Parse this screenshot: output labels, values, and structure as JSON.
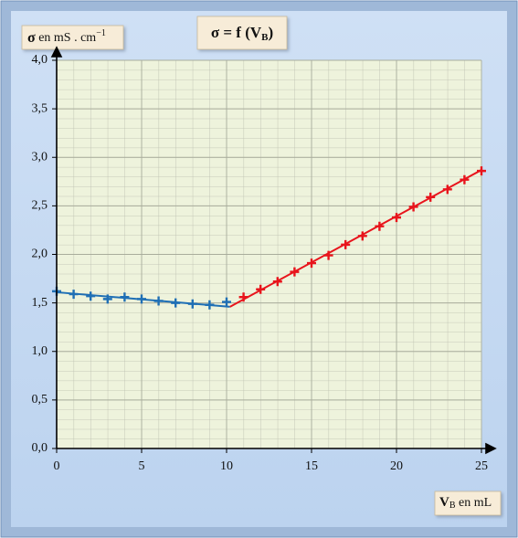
{
  "chart_data": {
    "type": "scatter",
    "title": {
      "main": "σ = f (V",
      "sub": "B",
      "end": ")"
    },
    "y_label": {
      "symbol": "σ",
      "text": " en mS . cm",
      "exp": "−1"
    },
    "x_label": {
      "symbol": "V",
      "sub": "B",
      "text": " en mL"
    },
    "xlim": [
      0,
      25
    ],
    "xticks": [
      0,
      5,
      10,
      15,
      20,
      25
    ],
    "ylim": [
      0,
      4
    ],
    "yticks": [
      {
        "value": 0,
        "label": "0,0"
      },
      {
        "value": 0.5,
        "label": "0,5"
      },
      {
        "value": 1,
        "label": "1,0"
      },
      {
        "value": 1.5,
        "label": "1,5"
      },
      {
        "value": 2,
        "label": "2,0"
      },
      {
        "value": 2.5,
        "label": "2,5"
      },
      {
        "value": 3,
        "label": "3,0"
      },
      {
        "value": 3.5,
        "label": "3,5"
      },
      {
        "value": 4,
        "label": "4,0"
      }
    ],
    "grid": true,
    "series": [
      {
        "color": "#1f6fb5",
        "x": [
          0,
          1,
          2,
          3,
          4,
          5,
          6,
          7,
          8,
          9,
          10
        ],
        "values": [
          1.62,
          1.59,
          1.57,
          1.54,
          1.56,
          1.54,
          1.52,
          1.5,
          1.49,
          1.48,
          1.51
        ]
      },
      {
        "color": "#e8141c",
        "x": [
          11,
          12,
          13,
          14,
          15,
          16,
          17,
          18,
          19,
          20,
          21,
          22,
          23,
          24,
          25
        ],
        "values": [
          1.56,
          1.64,
          1.72,
          1.82,
          1.91,
          1.99,
          2.1,
          2.19,
          2.29,
          2.38,
          2.49,
          2.59,
          2.67,
          2.77,
          2.86
        ]
      }
    ],
    "fits": [
      {
        "color": "#1f6fb5",
        "x": [
          0,
          10.2
        ],
        "values": [
          1.61,
          1.46
        ]
      },
      {
        "color": "#e8141c",
        "x": [
          10.2,
          25
        ],
        "values": [
          1.46,
          2.87
        ]
      }
    ]
  }
}
